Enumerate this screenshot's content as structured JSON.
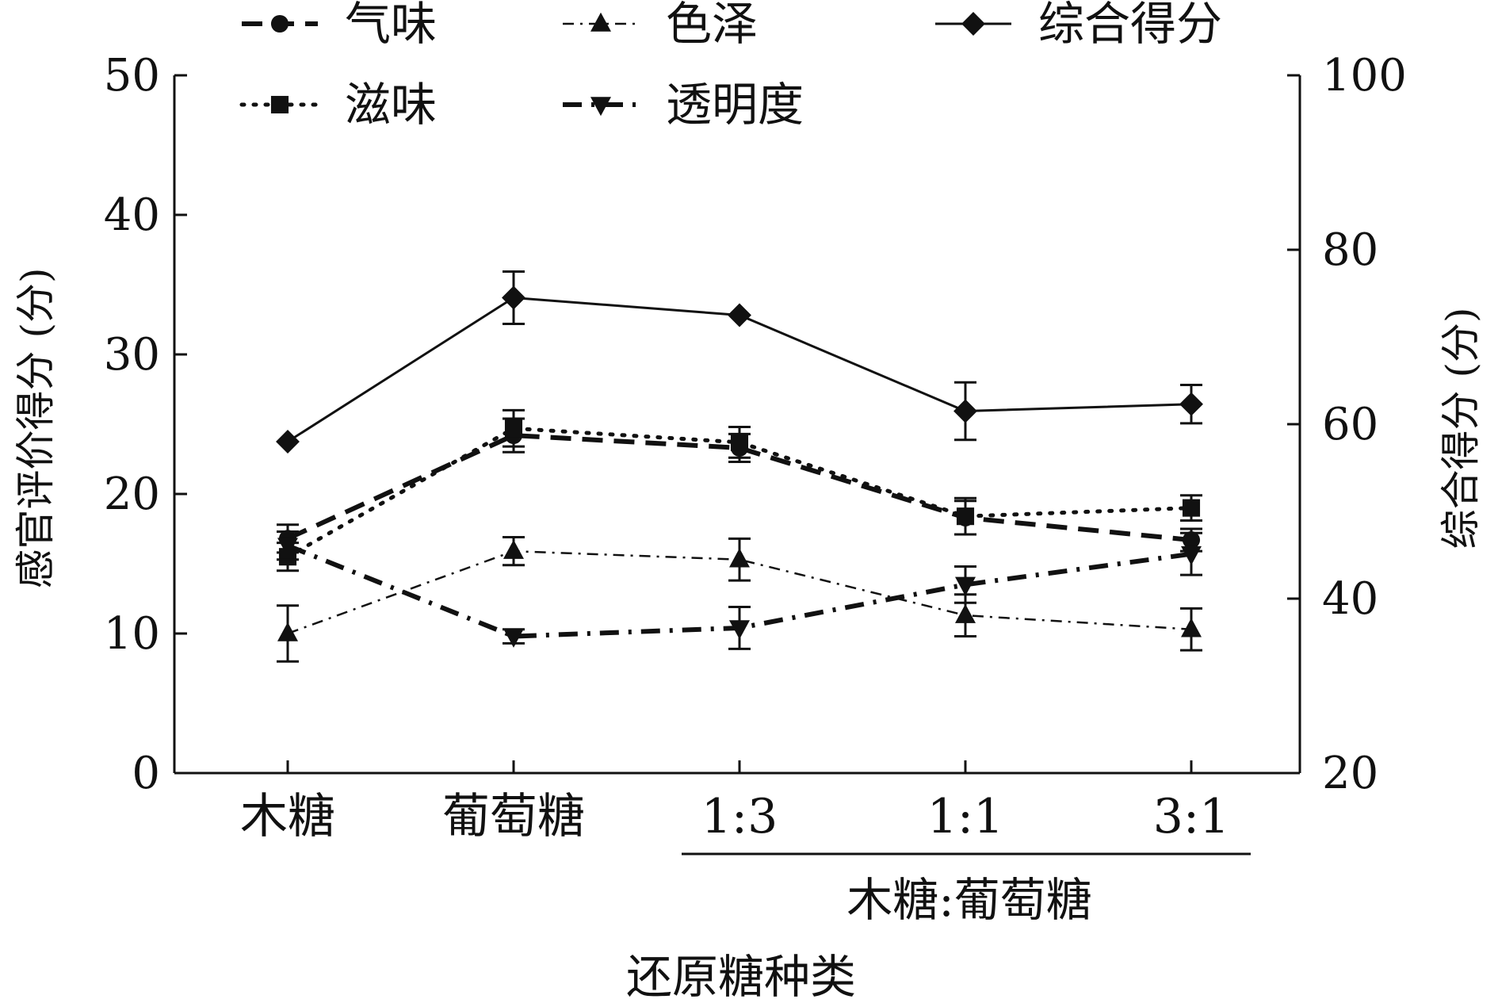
{
  "chart_data": {
    "type": "line",
    "categories": [
      "木糖",
      "葡萄糖",
      "1:3",
      "1:1",
      "3:1"
    ],
    "group_label": "木糖:葡萄糖",
    "group_categories": [
      "1:3",
      "1:1",
      "3:1"
    ],
    "xlabel": "还原糖种类",
    "ylabel_left": "感官评价得分 (分)",
    "ylabel_right": "综合得分 (分)",
    "ylim_left": [
      0,
      50
    ],
    "yticks_left": [
      0,
      10,
      20,
      30,
      40,
      50
    ],
    "ylim_right": [
      20,
      100
    ],
    "yticks_right": [
      20,
      40,
      60,
      80,
      100
    ],
    "grid": false,
    "legend_position": "top",
    "series": [
      {
        "name": "气味",
        "axis": "left",
        "marker": "circle",
        "dash": "dash",
        "values": [
          16.8,
          24.2,
          23.3,
          18.3,
          16.7
        ],
        "errors": [
          1.0,
          1.2,
          1.0,
          1.2,
          0.8
        ]
      },
      {
        "name": "色泽",
        "axis": "left",
        "marker": "triangle-up",
        "dash": "dashdot-thin",
        "values": [
          10.0,
          15.9,
          15.3,
          11.3,
          10.3
        ],
        "errors": [
          2.0,
          1.0,
          1.5,
          1.5,
          1.5
        ]
      },
      {
        "name": "综合得分",
        "axis": "right",
        "marker": "diamond",
        "dash": "solid",
        "values": [
          58.0,
          74.5,
          72.5,
          61.5,
          62.3
        ],
        "errors": [
          0.0,
          3.0,
          0.0,
          3.3,
          2.2
        ]
      },
      {
        "name": "滋味",
        "axis": "left",
        "marker": "square",
        "dash": "dot",
        "values": [
          15.5,
          24.7,
          23.7,
          18.4,
          19.0
        ],
        "errors": [
          1.0,
          1.3,
          1.1,
          1.3,
          0.9
        ]
      },
      {
        "name": "透明度",
        "axis": "left",
        "marker": "triangle-down",
        "dash": "dashdot",
        "values": [
          16.3,
          9.8,
          10.4,
          13.5,
          15.7
        ],
        "errors": [
          1.0,
          0.5,
          1.5,
          1.3,
          1.5
        ]
      }
    ]
  }
}
